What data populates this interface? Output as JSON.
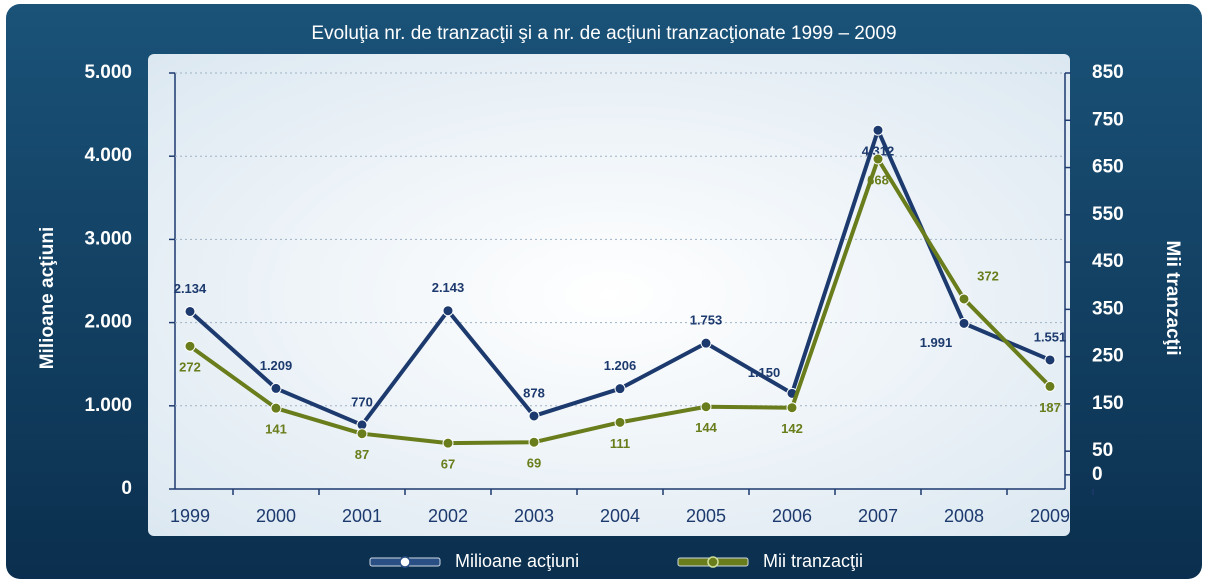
{
  "chart_data": {
    "type": "line",
    "title": "Evoluţia nr. de tranzacţii şi a nr. de acţiuni tranzacţionate 1999 – 2009",
    "y_label": "Milioane acţiuni",
    "y2_label": "Mii tranzacţii",
    "categories": [
      "1999",
      "2000",
      "2001",
      "2002",
      "2003",
      "2004",
      "2005",
      "2006",
      "2007",
      "2008",
      "2009"
    ],
    "series": [
      {
        "name": "Milioane acţiuni",
        "color": "#1d3a6e",
        "axis": "y",
        "values": [
          2134,
          1209,
          770,
          2143,
          878,
          1206,
          1753,
          1150,
          4312,
          1991,
          1551
        ],
        "value_labels": [
          "2.134",
          "1.209",
          "770",
          "2.143",
          "878",
          "1.206",
          "1.753",
          "1.150",
          "4.312",
          "1.991",
          "1.551"
        ]
      },
      {
        "name": "Mii tranzacţii",
        "color": "#6a7d1c",
        "axis": "y2",
        "values": [
          272,
          141,
          87,
          67,
          69,
          111,
          144,
          142,
          668,
          372,
          187
        ]
      }
    ],
    "ylim": [
      0,
      5000
    ],
    "yticks": [
      0,
      {
        "value": 1000,
        "label": "1.000"
      },
      {
        "value": 2000,
        "label": "2.000"
      },
      {
        "value": 3000,
        "label": "3.000"
      },
      {
        "value": 4000,
        "label": "4.000"
      },
      {
        "value": 5000,
        "label": "5.000"
      }
    ],
    "y2lim": [
      -30,
      850
    ],
    "y2ticks": [
      0,
      50,
      150,
      250,
      350,
      450,
      550,
      650,
      750,
      850
    ],
    "grid": true,
    "legend": "bottom"
  }
}
